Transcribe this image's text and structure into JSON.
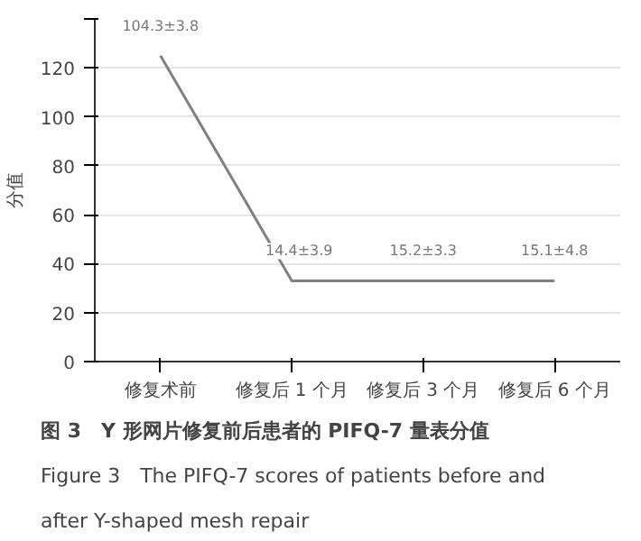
{
  "chart_data": {
    "type": "line",
    "title": "图 3　Y 形网片修复前后患者的 PIFQ-7 量表分值",
    "subtitle": "Figure 3　The PIFQ-7 scores of patients before and after Y-shaped mesh repair",
    "ylabel": "分值",
    "categories": [
      "修复术前",
      "修复后 1 个月",
      "修复后 3 个月",
      "修复后 6 个月"
    ],
    "series": [
      {
        "color": "#808080",
        "values": [
          125,
          33,
          33,
          33
        ]
      }
    ],
    "annotations": [
      "104.3±3.8",
      "14.4±3.9",
      "15.2±3.3",
      "15.1±4.8"
    ],
    "ylim": [
      0,
      140
    ],
    "yticks": [
      0,
      20,
      40,
      60,
      80,
      100,
      120,
      {
        "value": 140,
        "label": null
      }
    ],
    "grid": "y",
    "marker": "none",
    "line_style": "solid"
  }
}
